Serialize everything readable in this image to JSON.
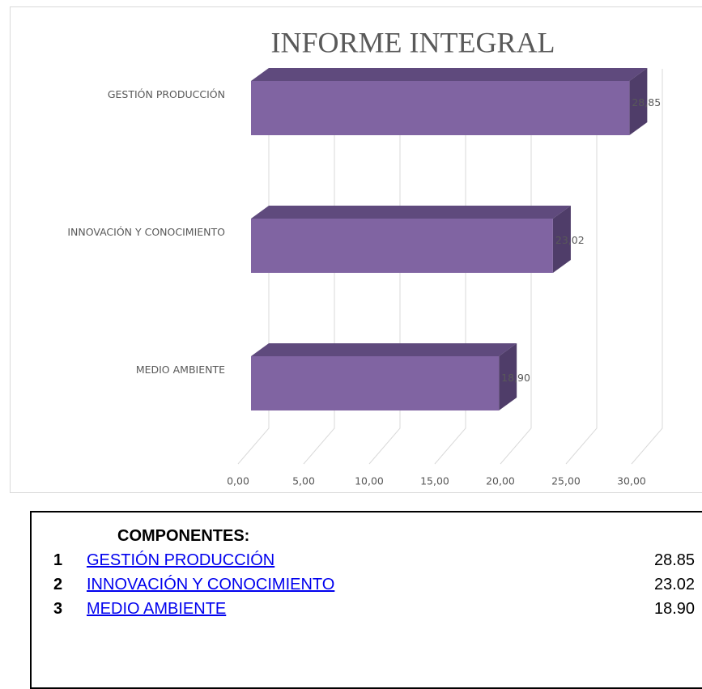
{
  "chart_data": {
    "type": "bar3d",
    "title": "INFORME INTEGRAL",
    "categories": [
      "GESTIÓN PRODUCCIÓN",
      "INNOVACIÓN Y CONOCIMIENTO",
      "MEDIO AMBIENTE"
    ],
    "values": [
      28.85,
      23.02,
      18.9
    ],
    "value_labels": [
      "28,85",
      "23,02",
      "18,90"
    ],
    "color": "#8064a2",
    "xlim": [
      0,
      30
    ],
    "xticks": [
      {
        "value": 0,
        "label": "0,00"
      },
      {
        "value": 5,
        "label": "5,00"
      },
      {
        "value": 10,
        "label": "10,00"
      },
      {
        "value": 15,
        "label": "15,00"
      },
      {
        "value": 20,
        "label": "20,00"
      },
      {
        "value": 25,
        "label": "25,00"
      },
      {
        "value": 30,
        "label": "30,00"
      }
    ],
    "grid": true
  },
  "panel": {
    "title": "COMPONENTES:",
    "rows": [
      [
        "1",
        "GESTIÓN PRODUCCIÓN",
        "28.85"
      ],
      [
        "2",
        "INNOVACIÓN Y CONOCIMIENTO",
        "23.02"
      ],
      [
        "3",
        "MEDIO AMBIENTE",
        "18.90"
      ]
    ]
  }
}
